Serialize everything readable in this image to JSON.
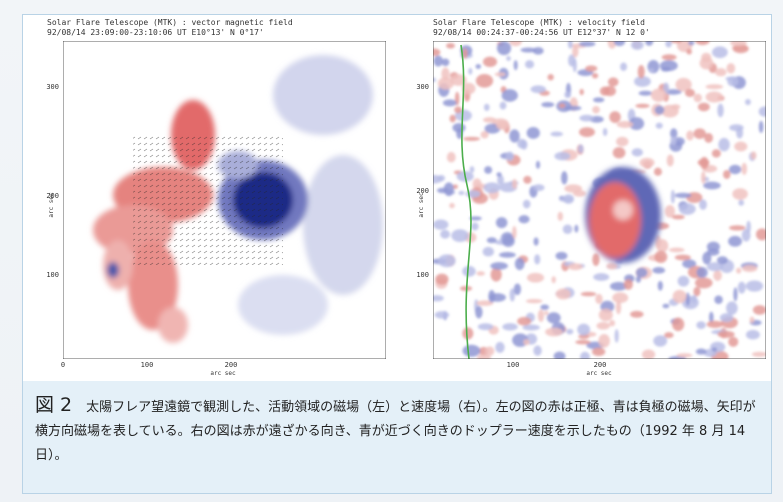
{
  "figure": {
    "panels": [
      {
        "title": "Solar Flare Telescope (MTK) : vector magnetic field",
        "subtitle": "92/08/14  23:09:00-23:10:06 UT   E10°13'  N 0°17'",
        "y_label": "arc sec",
        "x_label": "arc sec",
        "y_ticks": [
          "100",
          "200",
          "300"
        ],
        "x_ticks": [
          "0",
          "100",
          "200"
        ]
      },
      {
        "title": "Solar Flare Telescope (MTK) : velocity field",
        "subtitle": "92/08/14  00:24:37-00:24:56 UT   E12°37'  N 12 0'",
        "y_label": "arc sec",
        "x_label": "arc sec",
        "y_ticks": [
          "100",
          "200",
          "300"
        ],
        "x_ticks": [
          "100",
          "200"
        ]
      }
    ],
    "caption": {
      "label": "図 2",
      "text": "太陽フレア望遠鏡で観測した、活動領域の磁場（左）と速度場（右）。左の図の赤は正極、青は負極の磁場、矢印が横方向磁場を表している。右の図は赤が遠ざかる向き、青が近づく向きのドップラー速度を示したもの（1992 年 8 月 14 日）。"
    }
  }
}
